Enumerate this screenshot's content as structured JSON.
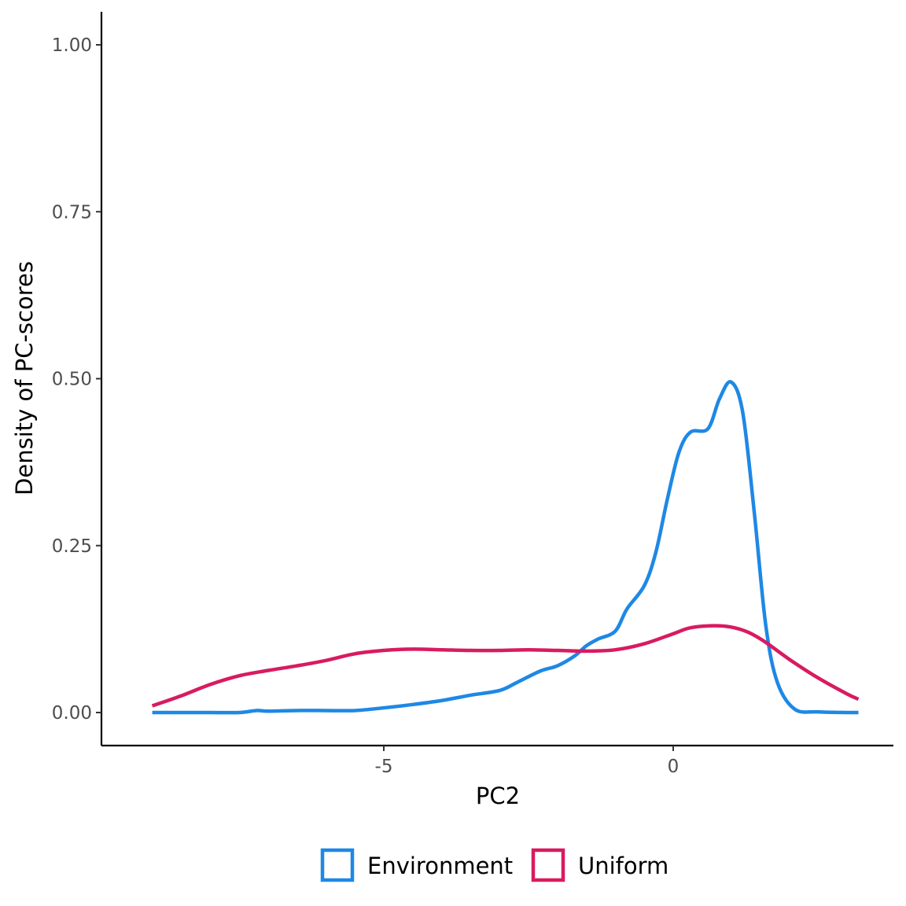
{
  "chart_data": {
    "type": "line",
    "title": "",
    "xlabel": "PC2",
    "ylabel": "Density of PC-scores",
    "xlim": [
      -9.3,
      3.8
    ],
    "ylim": [
      -0.1,
      1.05
    ],
    "x_ticks": [
      {
        "value": -5,
        "label": "-5"
      },
      {
        "value": 0,
        "label": "0"
      }
    ],
    "y_ticks": [
      {
        "value": 0.0,
        "label": "0.00"
      },
      {
        "value": 0.25,
        "label": "0.25"
      },
      {
        "value": 0.5,
        "label": "0.50"
      },
      {
        "value": 0.75,
        "label": "0.75"
      },
      {
        "value": 1.0,
        "label": "1.00"
      }
    ],
    "grid": false,
    "legend_position": "bottom",
    "series": [
      {
        "name": "Environment",
        "color": "#1E88E5",
        "points": [
          [
            -9.0,
            0.0
          ],
          [
            -8.0,
            0.0
          ],
          [
            -7.5,
            0.0
          ],
          [
            -7.2,
            0.003
          ],
          [
            -7.0,
            0.002
          ],
          [
            -6.5,
            0.003
          ],
          [
            -6.0,
            0.003
          ],
          [
            -5.5,
            0.003
          ],
          [
            -5.0,
            0.007
          ],
          [
            -4.5,
            0.012
          ],
          [
            -4.0,
            0.018
          ],
          [
            -3.5,
            0.026
          ],
          [
            -3.0,
            0.033
          ],
          [
            -2.7,
            0.045
          ],
          [
            -2.3,
            0.062
          ],
          [
            -2.0,
            0.07
          ],
          [
            -1.7,
            0.085
          ],
          [
            -1.5,
            0.1
          ],
          [
            -1.3,
            0.11
          ],
          [
            -1.0,
            0.122
          ],
          [
            -0.8,
            0.155
          ],
          [
            -0.5,
            0.19
          ],
          [
            -0.3,
            0.24
          ],
          [
            -0.1,
            0.32
          ],
          [
            0.1,
            0.39
          ],
          [
            0.3,
            0.42
          ],
          [
            0.6,
            0.425
          ],
          [
            0.8,
            0.47
          ],
          [
            1.0,
            0.495
          ],
          [
            1.2,
            0.45
          ],
          [
            1.4,
            0.3
          ],
          [
            1.6,
            0.13
          ],
          [
            1.8,
            0.045
          ],
          [
            2.1,
            0.005
          ],
          [
            2.5,
            0.001
          ],
          [
            3.0,
            0.0
          ],
          [
            3.2,
            0.0
          ]
        ]
      },
      {
        "name": "Uniform",
        "color": "#D81B60",
        "points": [
          [
            -9.0,
            0.01
          ],
          [
            -8.5,
            0.025
          ],
          [
            -8.0,
            0.042
          ],
          [
            -7.5,
            0.055
          ],
          [
            -7.0,
            0.063
          ],
          [
            -6.5,
            0.07
          ],
          [
            -6.0,
            0.078
          ],
          [
            -5.5,
            0.088
          ],
          [
            -5.0,
            0.093
          ],
          [
            -4.5,
            0.095
          ],
          [
            -4.0,
            0.094
          ],
          [
            -3.5,
            0.093
          ],
          [
            -3.0,
            0.093
          ],
          [
            -2.5,
            0.094
          ],
          [
            -2.0,
            0.093
          ],
          [
            -1.5,
            0.092
          ],
          [
            -1.0,
            0.094
          ],
          [
            -0.5,
            0.103
          ],
          [
            0.0,
            0.118
          ],
          [
            0.3,
            0.127
          ],
          [
            0.7,
            0.13
          ],
          [
            1.0,
            0.128
          ],
          [
            1.3,
            0.12
          ],
          [
            1.6,
            0.105
          ],
          [
            2.0,
            0.08
          ],
          [
            2.5,
            0.052
          ],
          [
            3.0,
            0.028
          ],
          [
            3.2,
            0.02
          ]
        ]
      }
    ]
  }
}
